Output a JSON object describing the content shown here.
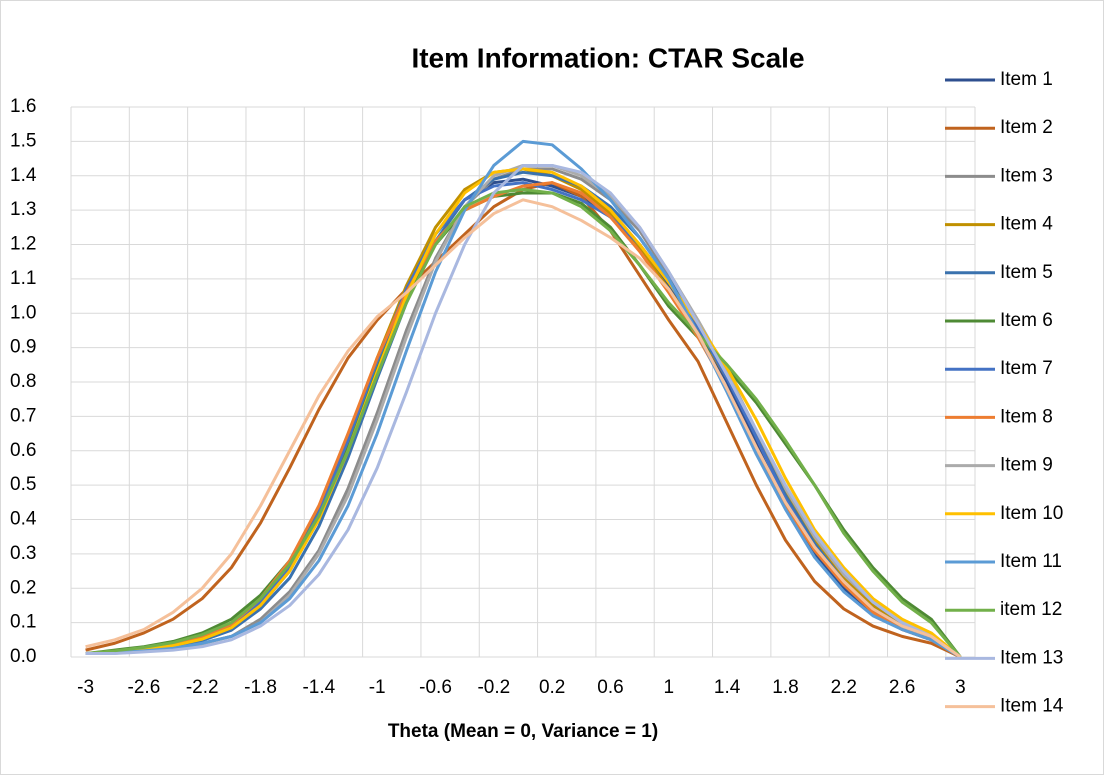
{
  "chart_data": {
    "type": "line",
    "title": "Item Information: CTAR Scale",
    "x_label": "Theta (Mean = 0, Variance = 1)",
    "categories": [
      -3,
      null,
      -2.6,
      null,
      -2.2,
      null,
      -1.8,
      null,
      -1.4,
      null,
      -1,
      null,
      -0.6,
      null,
      -0.2,
      null,
      0.2,
      null,
      0.6,
      null,
      1,
      null,
      1.4,
      null,
      1.8,
      null,
      2.2,
      null,
      2.6,
      null,
      3
    ],
    "ylim": [
      0,
      1.6
    ],
    "yticks": [
      {
        "value": 0,
        "label": "0.0"
      },
      0.1,
      0.2,
      0.3,
      0.4,
      0.5,
      0.6,
      0.7,
      0.8,
      0.9,
      {
        "value": 1,
        "label": "1.0"
      },
      1.1,
      1.2,
      1.3,
      1.4,
      1.5,
      1.6
    ],
    "grid": true,
    "legend": "right",
    "series": [
      {
        "name": "Item 1",
        "color": "#2E4F8F",
        "values": [
          0.01,
          0.015,
          0.02,
          0.03,
          0.05,
          0.08,
          0.15,
          0.25,
          0.41,
          0.62,
          0.85,
          1.06,
          1.23,
          1.33,
          1.38,
          1.39,
          1.37,
          1.34,
          1.28,
          1.19,
          1.08,
          0.95,
          0.8,
          0.62,
          0.44,
          0.3,
          0.2,
          0.13,
          0.08,
          0.05,
          0
        ]
      },
      {
        "name": "Item 2",
        "color": "#C0631E",
        "values": [
          0.02,
          0.04,
          0.07,
          0.11,
          0.17,
          0.26,
          0.39,
          0.55,
          0.72,
          0.87,
          0.98,
          1.07,
          1.15,
          1.23,
          1.31,
          1.36,
          1.38,
          1.34,
          1.24,
          1.11,
          0.98,
          0.86,
          0.68,
          0.5,
          0.34,
          0.22,
          0.14,
          0.09,
          0.06,
          0.04,
          0
        ]
      },
      {
        "name": "Item 3",
        "color": "#8C8C8C",
        "values": [
          0.01,
          0.012,
          0.017,
          0.025,
          0.04,
          0.06,
          0.11,
          0.19,
          0.31,
          0.49,
          0.71,
          0.95,
          1.16,
          1.31,
          1.39,
          1.42,
          1.42,
          1.39,
          1.33,
          1.24,
          1.11,
          0.97,
          0.82,
          0.65,
          0.48,
          0.34,
          0.23,
          0.15,
          0.1,
          0.06,
          0
        ]
      },
      {
        "name": "Item 4",
        "color": "#C09000",
        "values": [
          0.01,
          0.015,
          0.022,
          0.033,
          0.055,
          0.09,
          0.16,
          0.27,
          0.43,
          0.64,
          0.87,
          1.08,
          1.25,
          1.36,
          1.41,
          1.42,
          1.4,
          1.36,
          1.29,
          1.19,
          1.07,
          0.95,
          0.81,
          0.65,
          0.48,
          0.34,
          0.23,
          0.15,
          0.1,
          0.06,
          0
        ]
      },
      {
        "name": "Item 5",
        "color": "#3A72AE",
        "values": [
          0.01,
          0.014,
          0.02,
          0.03,
          0.048,
          0.078,
          0.14,
          0.23,
          0.38,
          0.58,
          0.81,
          1.03,
          1.21,
          1.33,
          1.39,
          1.41,
          1.4,
          1.37,
          1.31,
          1.22,
          1.1,
          0.96,
          0.81,
          0.64,
          0.47,
          0.33,
          0.22,
          0.14,
          0.09,
          0.06,
          0
        ]
      },
      {
        "name": "Item 6",
        "color": "#4E8A34",
        "values": [
          0.01,
          0.02,
          0.03,
          0.045,
          0.07,
          0.11,
          0.18,
          0.28,
          0.43,
          0.62,
          0.84,
          1.04,
          1.2,
          1.3,
          1.34,
          1.35,
          1.35,
          1.32,
          1.25,
          1.14,
          1.02,
          0.93,
          0.84,
          0.74,
          0.62,
          0.5,
          0.37,
          0.26,
          0.17,
          0.11,
          0
        ]
      },
      {
        "name": "Item 7",
        "color": "#4472C4",
        "values": [
          0.01,
          0.016,
          0.023,
          0.035,
          0.055,
          0.09,
          0.16,
          0.26,
          0.42,
          0.63,
          0.86,
          1.07,
          1.23,
          1.33,
          1.37,
          1.38,
          1.36,
          1.33,
          1.28,
          1.2,
          1.09,
          0.96,
          0.81,
          0.64,
          0.46,
          0.32,
          0.21,
          0.14,
          0.09,
          0.06,
          0
        ]
      },
      {
        "name": "Item 8",
        "color": "#ED7D31",
        "values": [
          0.01,
          0.017,
          0.025,
          0.037,
          0.06,
          0.095,
          0.17,
          0.28,
          0.44,
          0.65,
          0.87,
          1.06,
          1.21,
          1.3,
          1.34,
          1.37,
          1.38,
          1.35,
          1.28,
          1.18,
          1.06,
          0.93,
          0.78,
          0.61,
          0.44,
          0.31,
          0.21,
          0.13,
          0.08,
          0.05,
          0
        ]
      },
      {
        "name": "Item 9",
        "color": "#ABABAB",
        "values": [
          0.01,
          0.011,
          0.016,
          0.024,
          0.038,
          0.06,
          0.1,
          0.18,
          0.3,
          0.47,
          0.69,
          0.93,
          1.15,
          1.31,
          1.4,
          1.43,
          1.43,
          1.4,
          1.34,
          1.25,
          1.12,
          0.98,
          0.83,
          0.66,
          0.49,
          0.35,
          0.24,
          0.16,
          0.1,
          0.06,
          0
        ]
      },
      {
        "name": "Item 10",
        "color": "#FFC000",
        "values": [
          0.01,
          0.015,
          0.022,
          0.033,
          0.052,
          0.085,
          0.15,
          0.25,
          0.4,
          0.6,
          0.83,
          1.05,
          1.23,
          1.35,
          1.41,
          1.42,
          1.41,
          1.37,
          1.3,
          1.2,
          1.09,
          0.97,
          0.84,
          0.69,
          0.52,
          0.37,
          0.26,
          0.17,
          0.11,
          0.07,
          0
        ]
      },
      {
        "name": "Item 11",
        "color": "#5B9BD5",
        "values": [
          0.01,
          0.012,
          0.018,
          0.025,
          0.04,
          0.06,
          0.1,
          0.17,
          0.28,
          0.44,
          0.65,
          0.89,
          1.12,
          1.3,
          1.43,
          1.5,
          1.49,
          1.42,
          1.33,
          1.22,
          1.1,
          0.94,
          0.77,
          0.59,
          0.43,
          0.29,
          0.19,
          0.12,
          0.08,
          0.05,
          0
        ]
      },
      {
        "name": "item 12",
        "color": "#72B04A",
        "values": [
          0.01,
          0.018,
          0.028,
          0.042,
          0.065,
          0.1,
          0.17,
          0.27,
          0.41,
          0.6,
          0.82,
          1.03,
          1.2,
          1.31,
          1.35,
          1.36,
          1.35,
          1.31,
          1.24,
          1.14,
          1.03,
          0.94,
          0.85,
          0.75,
          0.63,
          0.5,
          0.36,
          0.25,
          0.16,
          0.1,
          0
        ]
      },
      {
        "name": "Item 13",
        "color": "#A9B8E0",
        "values": [
          0.01,
          0.01,
          0.015,
          0.02,
          0.03,
          0.05,
          0.09,
          0.15,
          0.24,
          0.37,
          0.55,
          0.77,
          1.0,
          1.2,
          1.35,
          1.43,
          1.43,
          1.41,
          1.35,
          1.25,
          1.12,
          0.97,
          0.82,
          0.66,
          0.5,
          0.36,
          0.25,
          0.16,
          0.1,
          0.06,
          0
        ]
      },
      {
        "name": "Item 14",
        "color": "#F5C09A",
        "values": [
          0.03,
          0.05,
          0.08,
          0.13,
          0.2,
          0.3,
          0.44,
          0.6,
          0.76,
          0.89,
          0.99,
          1.06,
          1.14,
          1.22,
          1.29,
          1.33,
          1.31,
          1.27,
          1.22,
          1.16,
          1.07,
          0.94,
          0.78,
          0.61,
          0.45,
          0.32,
          0.22,
          0.14,
          0.09,
          0.06,
          0
        ]
      }
    ]
  }
}
